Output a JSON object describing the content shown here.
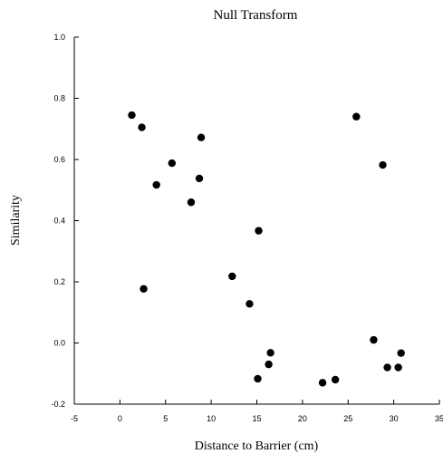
{
  "chart_data": {
    "type": "scatter",
    "title": "Null Transform",
    "xlabel": "Distance to Barrier (cm)",
    "ylabel": "Similarity",
    "xlim": [
      -5,
      35
    ],
    "ylim": [
      -0.2,
      1.0
    ],
    "xticks": [
      -5,
      0,
      5,
      10,
      15,
      20,
      25,
      30,
      35
    ],
    "yticks": [
      -0.2,
      0.0,
      0.2,
      0.4,
      0.6,
      0.8,
      1.0
    ],
    "xtick_labels": [
      "-5",
      "0",
      "5",
      "10",
      "15",
      "20",
      "25",
      "30",
      "35"
    ],
    "ytick_labels": [
      "-0.2",
      "0.0",
      "0.2",
      "0.4",
      "0.6",
      "0.8",
      "1.0"
    ],
    "grid": false,
    "marker_color": "#000000",
    "series": [
      {
        "points": [
          [
            1.3,
            0.745
          ],
          [
            2.4,
            0.705
          ],
          [
            2.6,
            0.177
          ],
          [
            4.0,
            0.517
          ],
          [
            5.7,
            0.588
          ],
          [
            7.8,
            0.46
          ],
          [
            8.7,
            0.538
          ],
          [
            8.9,
            0.672
          ],
          [
            12.3,
            0.218
          ],
          [
            14.2,
            0.128
          ],
          [
            15.2,
            0.367
          ],
          [
            15.1,
            -0.117
          ],
          [
            16.3,
            -0.07
          ],
          [
            16.5,
            -0.032
          ],
          [
            22.2,
            -0.13
          ],
          [
            23.6,
            -0.12
          ],
          [
            25.9,
            0.74
          ],
          [
            27.8,
            0.01
          ],
          [
            28.8,
            0.582
          ],
          [
            29.3,
            -0.08
          ],
          [
            30.5,
            -0.08
          ],
          [
            30.8,
            -0.033
          ]
        ]
      }
    ]
  }
}
